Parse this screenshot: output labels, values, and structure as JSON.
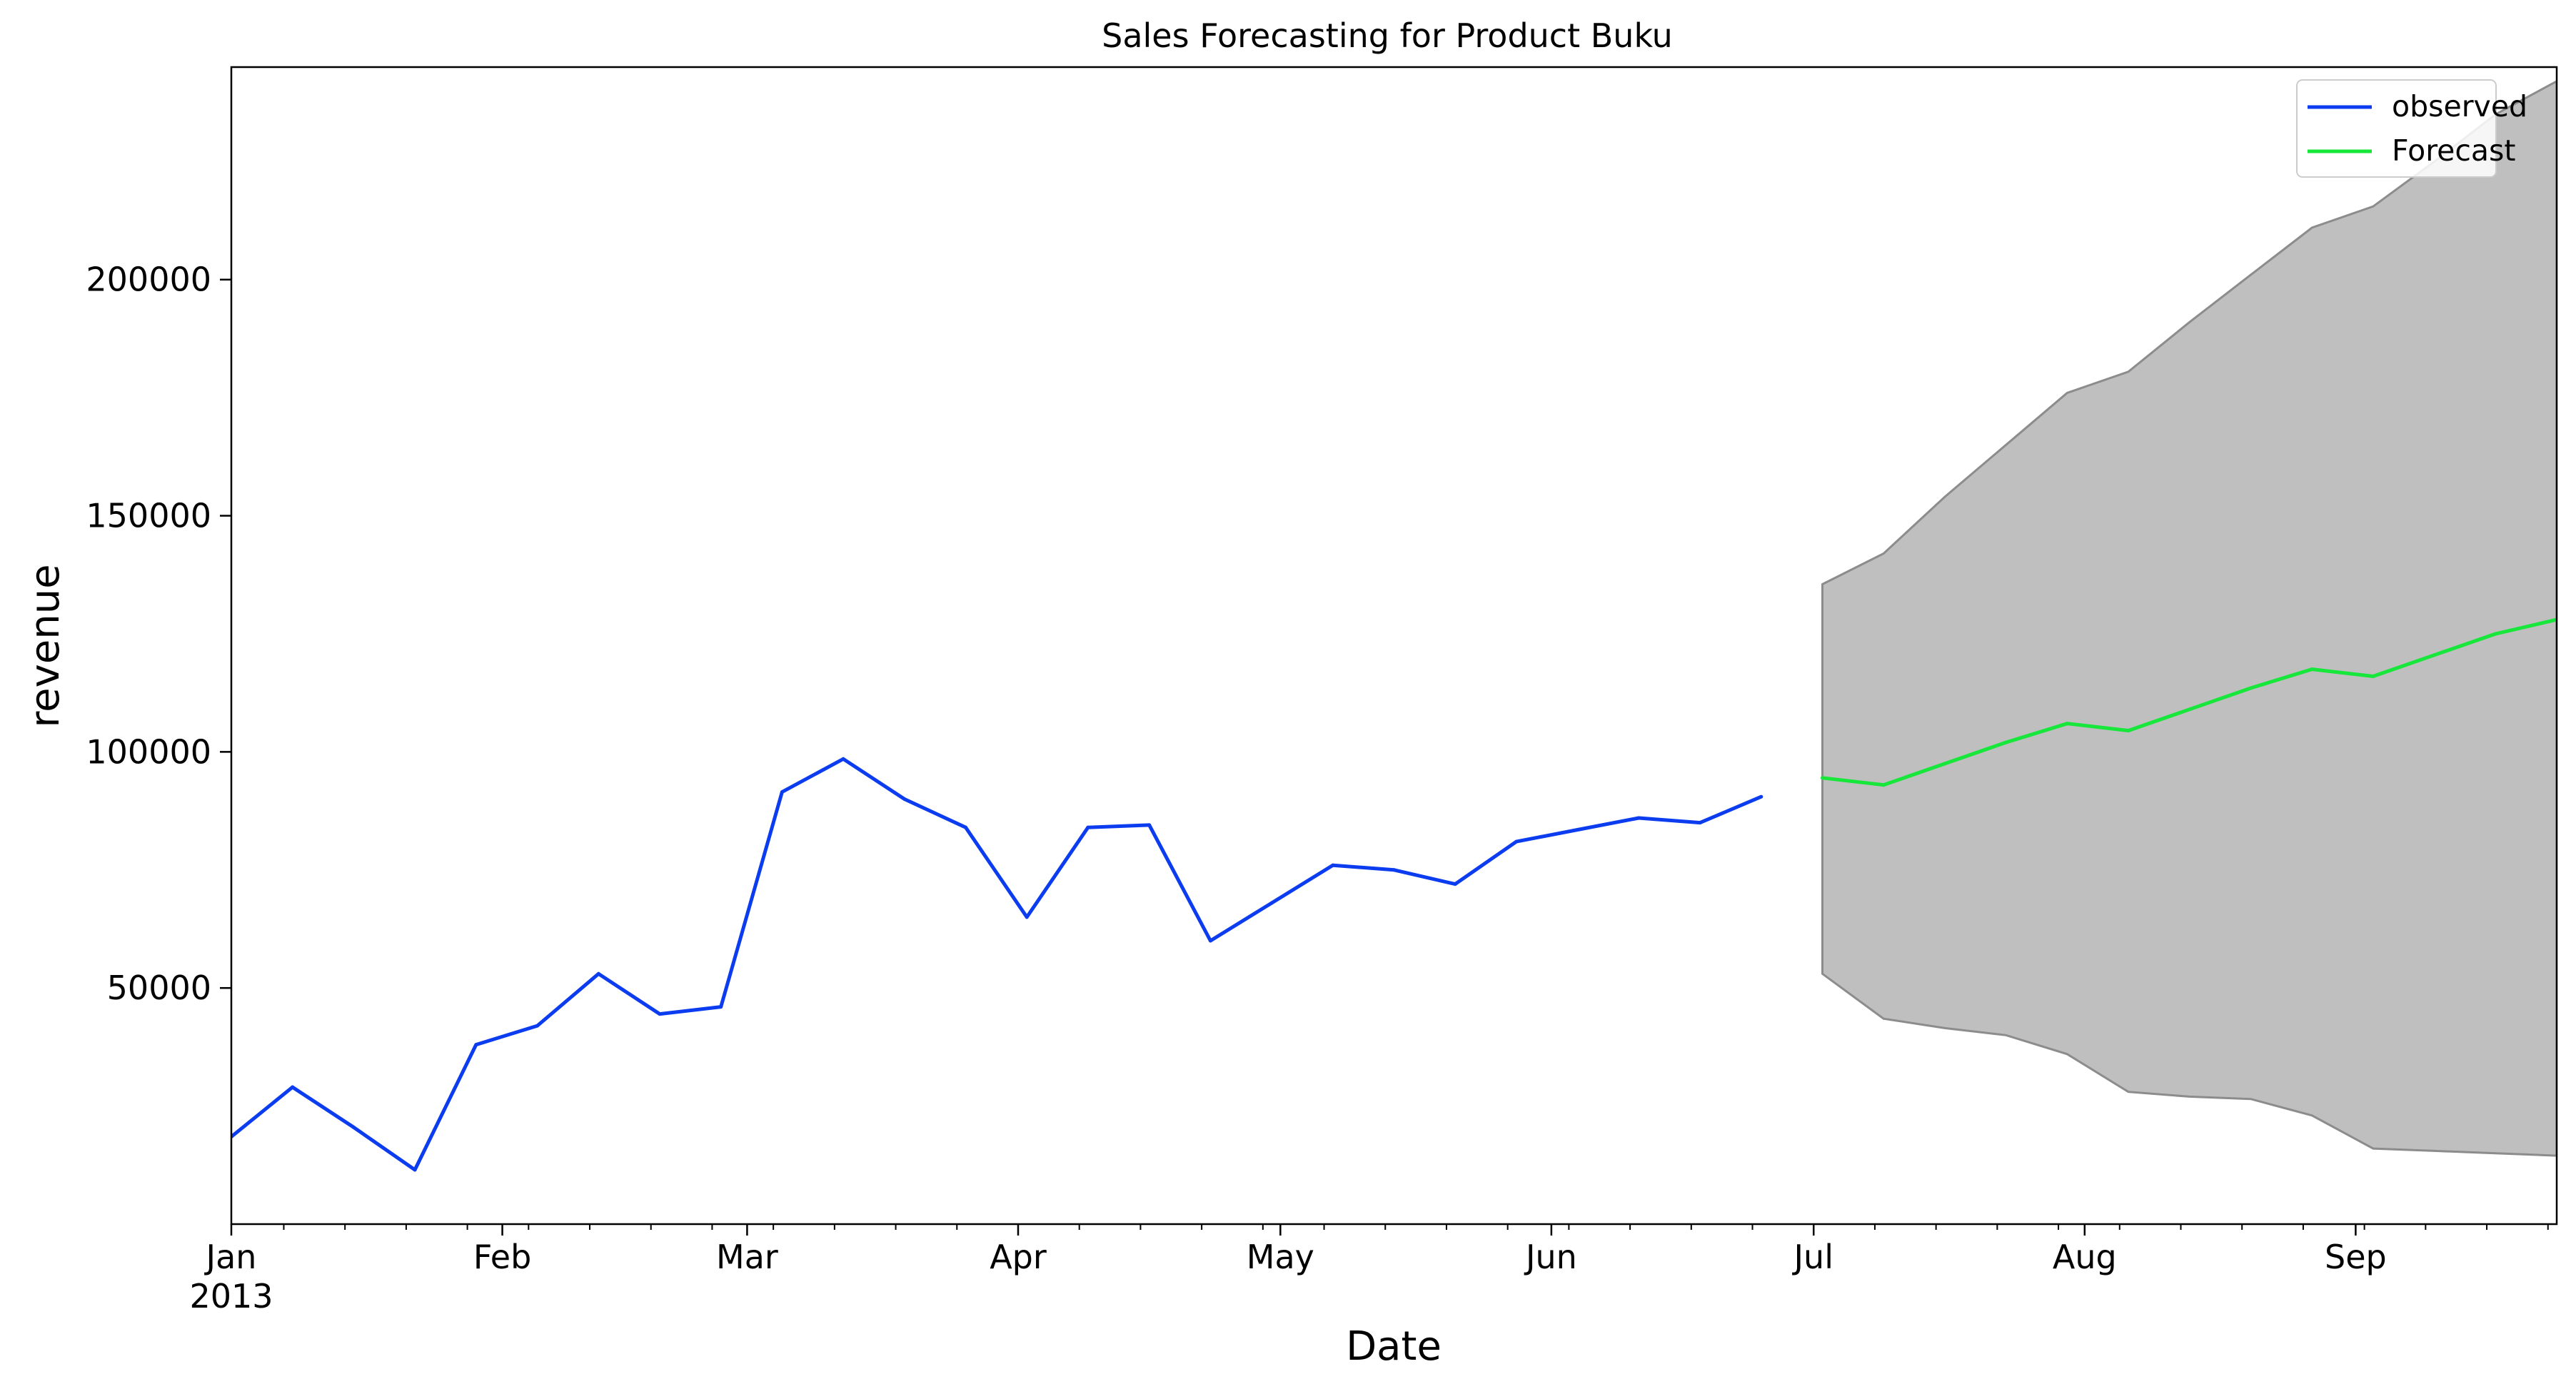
{
  "chart_data": {
    "type": "line",
    "title": "Sales Forecasting for Product Buku",
    "xlabel": "Date",
    "ylabel": "revenue",
    "x_range": [
      "2013-01-01",
      "2013-09-24"
    ],
    "ylim": [
      0,
      245000
    ],
    "grid": false,
    "legend": "top-right",
    "x_ticks": [
      {
        "date": "2013-01-01",
        "label": "Jan",
        "sublabel": "2013"
      },
      {
        "date": "2013-02-01",
        "label": "Feb",
        "sublabel": ""
      },
      {
        "date": "2013-03-01",
        "label": "Mar",
        "sublabel": ""
      },
      {
        "date": "2013-04-01",
        "label": "Apr",
        "sublabel": ""
      },
      {
        "date": "2013-05-01",
        "label": "May",
        "sublabel": ""
      },
      {
        "date": "2013-06-01",
        "label": "Jun",
        "sublabel": ""
      },
      {
        "date": "2013-07-01",
        "label": "Jul",
        "sublabel": ""
      },
      {
        "date": "2013-08-01",
        "label": "Aug",
        "sublabel": ""
      },
      {
        "date": "2013-09-01",
        "label": "Sep",
        "sublabel": ""
      }
    ],
    "y_ticks": [
      50000,
      100000,
      150000,
      200000
    ],
    "series": [
      {
        "name": "observed",
        "color": "#0b3cf0",
        "x": [
          "2013-01-01",
          "2013-01-08",
          "2013-01-15",
          "2013-01-22",
          "2013-01-29",
          "2013-02-05",
          "2013-02-12",
          "2013-02-19",
          "2013-02-26",
          "2013-03-05",
          "2013-03-12",
          "2013-03-19",
          "2013-03-26",
          "2013-04-02",
          "2013-04-09",
          "2013-04-16",
          "2013-04-23",
          "2013-04-30",
          "2013-05-07",
          "2013-05-14",
          "2013-05-21",
          "2013-05-28",
          "2013-06-04",
          "2013-06-11",
          "2013-06-18",
          "2013-06-25"
        ],
        "values": [
          18500,
          29000,
          20500,
          11500,
          38000,
          42000,
          53000,
          44500,
          46000,
          91500,
          98500,
          90000,
          84000,
          65000,
          84000,
          84500,
          60000,
          68000,
          76000,
          75000,
          72000,
          81000,
          83500,
          86000,
          85000,
          90500
        ]
      },
      {
        "name": "Forecast",
        "color": "#17e63a",
        "x": [
          "2013-07-02",
          "2013-07-09",
          "2013-07-16",
          "2013-07-23",
          "2013-07-30",
          "2013-08-06",
          "2013-08-13",
          "2013-08-20",
          "2013-08-27",
          "2013-09-03",
          "2013-09-10",
          "2013-09-17",
          "2013-09-24"
        ],
        "values": [
          94500,
          93000,
          97500,
          102000,
          106000,
          104500,
          109000,
          113500,
          117500,
          116000,
          120500,
          125000,
          128000
        ]
      }
    ],
    "confidence_band": {
      "color": "#bfbfbf",
      "edge_color": "#8c8c8c",
      "x": [
        "2013-07-02",
        "2013-07-09",
        "2013-07-16",
        "2013-07-23",
        "2013-07-30",
        "2013-08-06",
        "2013-08-13",
        "2013-08-20",
        "2013-08-27",
        "2013-09-03",
        "2013-09-10",
        "2013-09-17",
        "2013-09-24"
      ],
      "lower": [
        53000,
        43500,
        41500,
        40000,
        36000,
        28000,
        27000,
        26500,
        23000,
        16000,
        15500,
        15000,
        14500
      ],
      "upper": [
        135500,
        142000,
        154000,
        165000,
        176000,
        180500,
        191000,
        201000,
        211000,
        215500,
        225000,
        235000,
        242000
      ]
    }
  }
}
